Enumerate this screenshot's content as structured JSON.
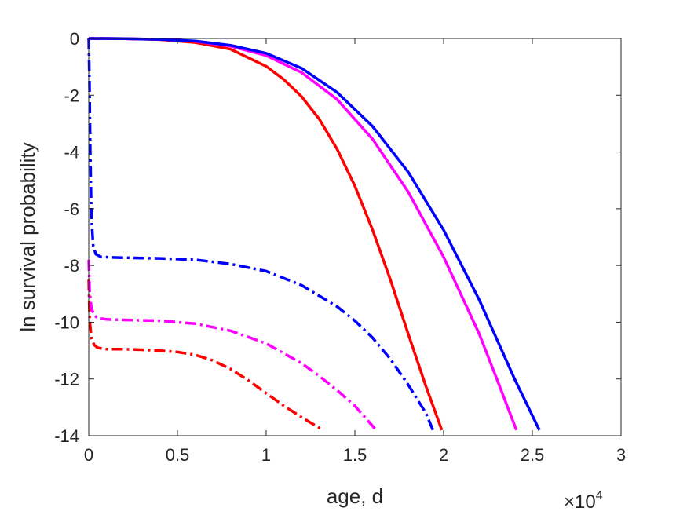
{
  "chart_data": {
    "type": "line",
    "xlabel": "age, d",
    "ylabel": "ln survival probability",
    "x_multiplier_base": "×10",
    "x_multiplier_exp": "4",
    "xlim": [
      0,
      30000
    ],
    "ylim": [
      -14,
      0
    ],
    "xticks": [
      0,
      5000,
      10000,
      15000,
      20000,
      25000,
      30000
    ],
    "xtick_labels": [
      "0",
      "0.5",
      "1",
      "1.5",
      "2",
      "2.5",
      "3"
    ],
    "yticks": [
      0,
      -2,
      -4,
      -6,
      -8,
      -10,
      -12,
      -14
    ],
    "ytick_labels": [
      "0",
      "-2",
      "-4",
      "-6",
      "-8",
      "-10",
      "-12",
      "-14"
    ],
    "grid": false,
    "series": [
      {
        "color": "#ff0000",
        "style": "solid",
        "points": [
          [
            0,
            0
          ],
          [
            2000,
            -0.005
          ],
          [
            4000,
            -0.04
          ],
          [
            6000,
            -0.14
          ],
          [
            8000,
            -0.38
          ],
          [
            10000,
            -0.98
          ],
          [
            11000,
            -1.45
          ],
          [
            12000,
            -2.05
          ],
          [
            13000,
            -2.85
          ],
          [
            14000,
            -3.9
          ],
          [
            15000,
            -5.2
          ],
          [
            16000,
            -6.75
          ],
          [
            17000,
            -8.5
          ],
          [
            18000,
            -10.4
          ],
          [
            19000,
            -12.25
          ],
          [
            19900,
            -13.8
          ]
        ]
      },
      {
        "color": "#ff00ff",
        "style": "solid",
        "points": [
          [
            0,
            0
          ],
          [
            2000,
            -0.005
          ],
          [
            4000,
            -0.03
          ],
          [
            6000,
            -0.1
          ],
          [
            8000,
            -0.27
          ],
          [
            10000,
            -0.6
          ],
          [
            12000,
            -1.2
          ],
          [
            14000,
            -2.15
          ],
          [
            16000,
            -3.55
          ],
          [
            18000,
            -5.4
          ],
          [
            20000,
            -7.7
          ],
          [
            22000,
            -10.4
          ],
          [
            23000,
            -12.0
          ],
          [
            24100,
            -13.8
          ]
        ]
      },
      {
        "color": "#0000ff",
        "style": "solid",
        "points": [
          [
            0,
            0
          ],
          [
            2000,
            -0.005
          ],
          [
            4000,
            -0.03
          ],
          [
            6000,
            -0.09
          ],
          [
            8000,
            -0.24
          ],
          [
            10000,
            -0.52
          ],
          [
            12000,
            -1.05
          ],
          [
            14000,
            -1.9
          ],
          [
            16000,
            -3.1
          ],
          [
            18000,
            -4.7
          ],
          [
            20000,
            -6.75
          ],
          [
            22000,
            -9.2
          ],
          [
            24000,
            -12.0
          ],
          [
            25400,
            -13.8
          ]
        ]
      },
      {
        "color": "#ff0000",
        "style": "dashdot",
        "points": [
          [
            0,
            -8.5
          ],
          [
            50,
            -9.9
          ],
          [
            150,
            -10.55
          ],
          [
            300,
            -10.8
          ],
          [
            500,
            -10.9
          ],
          [
            1000,
            -10.95
          ],
          [
            2000,
            -10.95
          ],
          [
            3000,
            -10.97
          ],
          [
            4000,
            -11.0
          ],
          [
            5000,
            -11.05
          ],
          [
            6000,
            -11.15
          ],
          [
            7000,
            -11.35
          ],
          [
            8000,
            -11.65
          ],
          [
            9000,
            -12.05
          ],
          [
            10000,
            -12.5
          ],
          [
            11000,
            -12.95
          ],
          [
            12000,
            -13.35
          ],
          [
            13200,
            -13.8
          ]
        ]
      },
      {
        "color": "#ff00ff",
        "style": "dashdot",
        "points": [
          [
            0,
            -7.8
          ],
          [
            50,
            -8.9
          ],
          [
            150,
            -9.5
          ],
          [
            300,
            -9.75
          ],
          [
            500,
            -9.85
          ],
          [
            1000,
            -9.9
          ],
          [
            2000,
            -9.92
          ],
          [
            4000,
            -9.95
          ],
          [
            6000,
            -10.05
          ],
          [
            8000,
            -10.3
          ],
          [
            10000,
            -10.75
          ],
          [
            12000,
            -11.45
          ],
          [
            13000,
            -11.9
          ],
          [
            14000,
            -12.4
          ],
          [
            15000,
            -12.95
          ],
          [
            16200,
            -13.8
          ]
        ]
      },
      {
        "color": "#0000ff",
        "style": "dashdot",
        "points": [
          [
            0,
            0
          ],
          [
            40,
            -1.5
          ],
          [
            90,
            -4.0
          ],
          [
            150,
            -6.3
          ],
          [
            250,
            -7.3
          ],
          [
            400,
            -7.6
          ],
          [
            700,
            -7.7
          ],
          [
            1500,
            -7.72
          ],
          [
            4000,
            -7.75
          ],
          [
            6000,
            -7.8
          ],
          [
            8000,
            -7.95
          ],
          [
            10000,
            -8.2
          ],
          [
            12000,
            -8.7
          ],
          [
            14000,
            -9.45
          ],
          [
            15000,
            -9.95
          ],
          [
            16000,
            -10.55
          ],
          [
            17000,
            -11.3
          ],
          [
            18000,
            -12.2
          ],
          [
            19000,
            -13.2
          ],
          [
            19400,
            -13.8
          ]
        ]
      }
    ]
  }
}
